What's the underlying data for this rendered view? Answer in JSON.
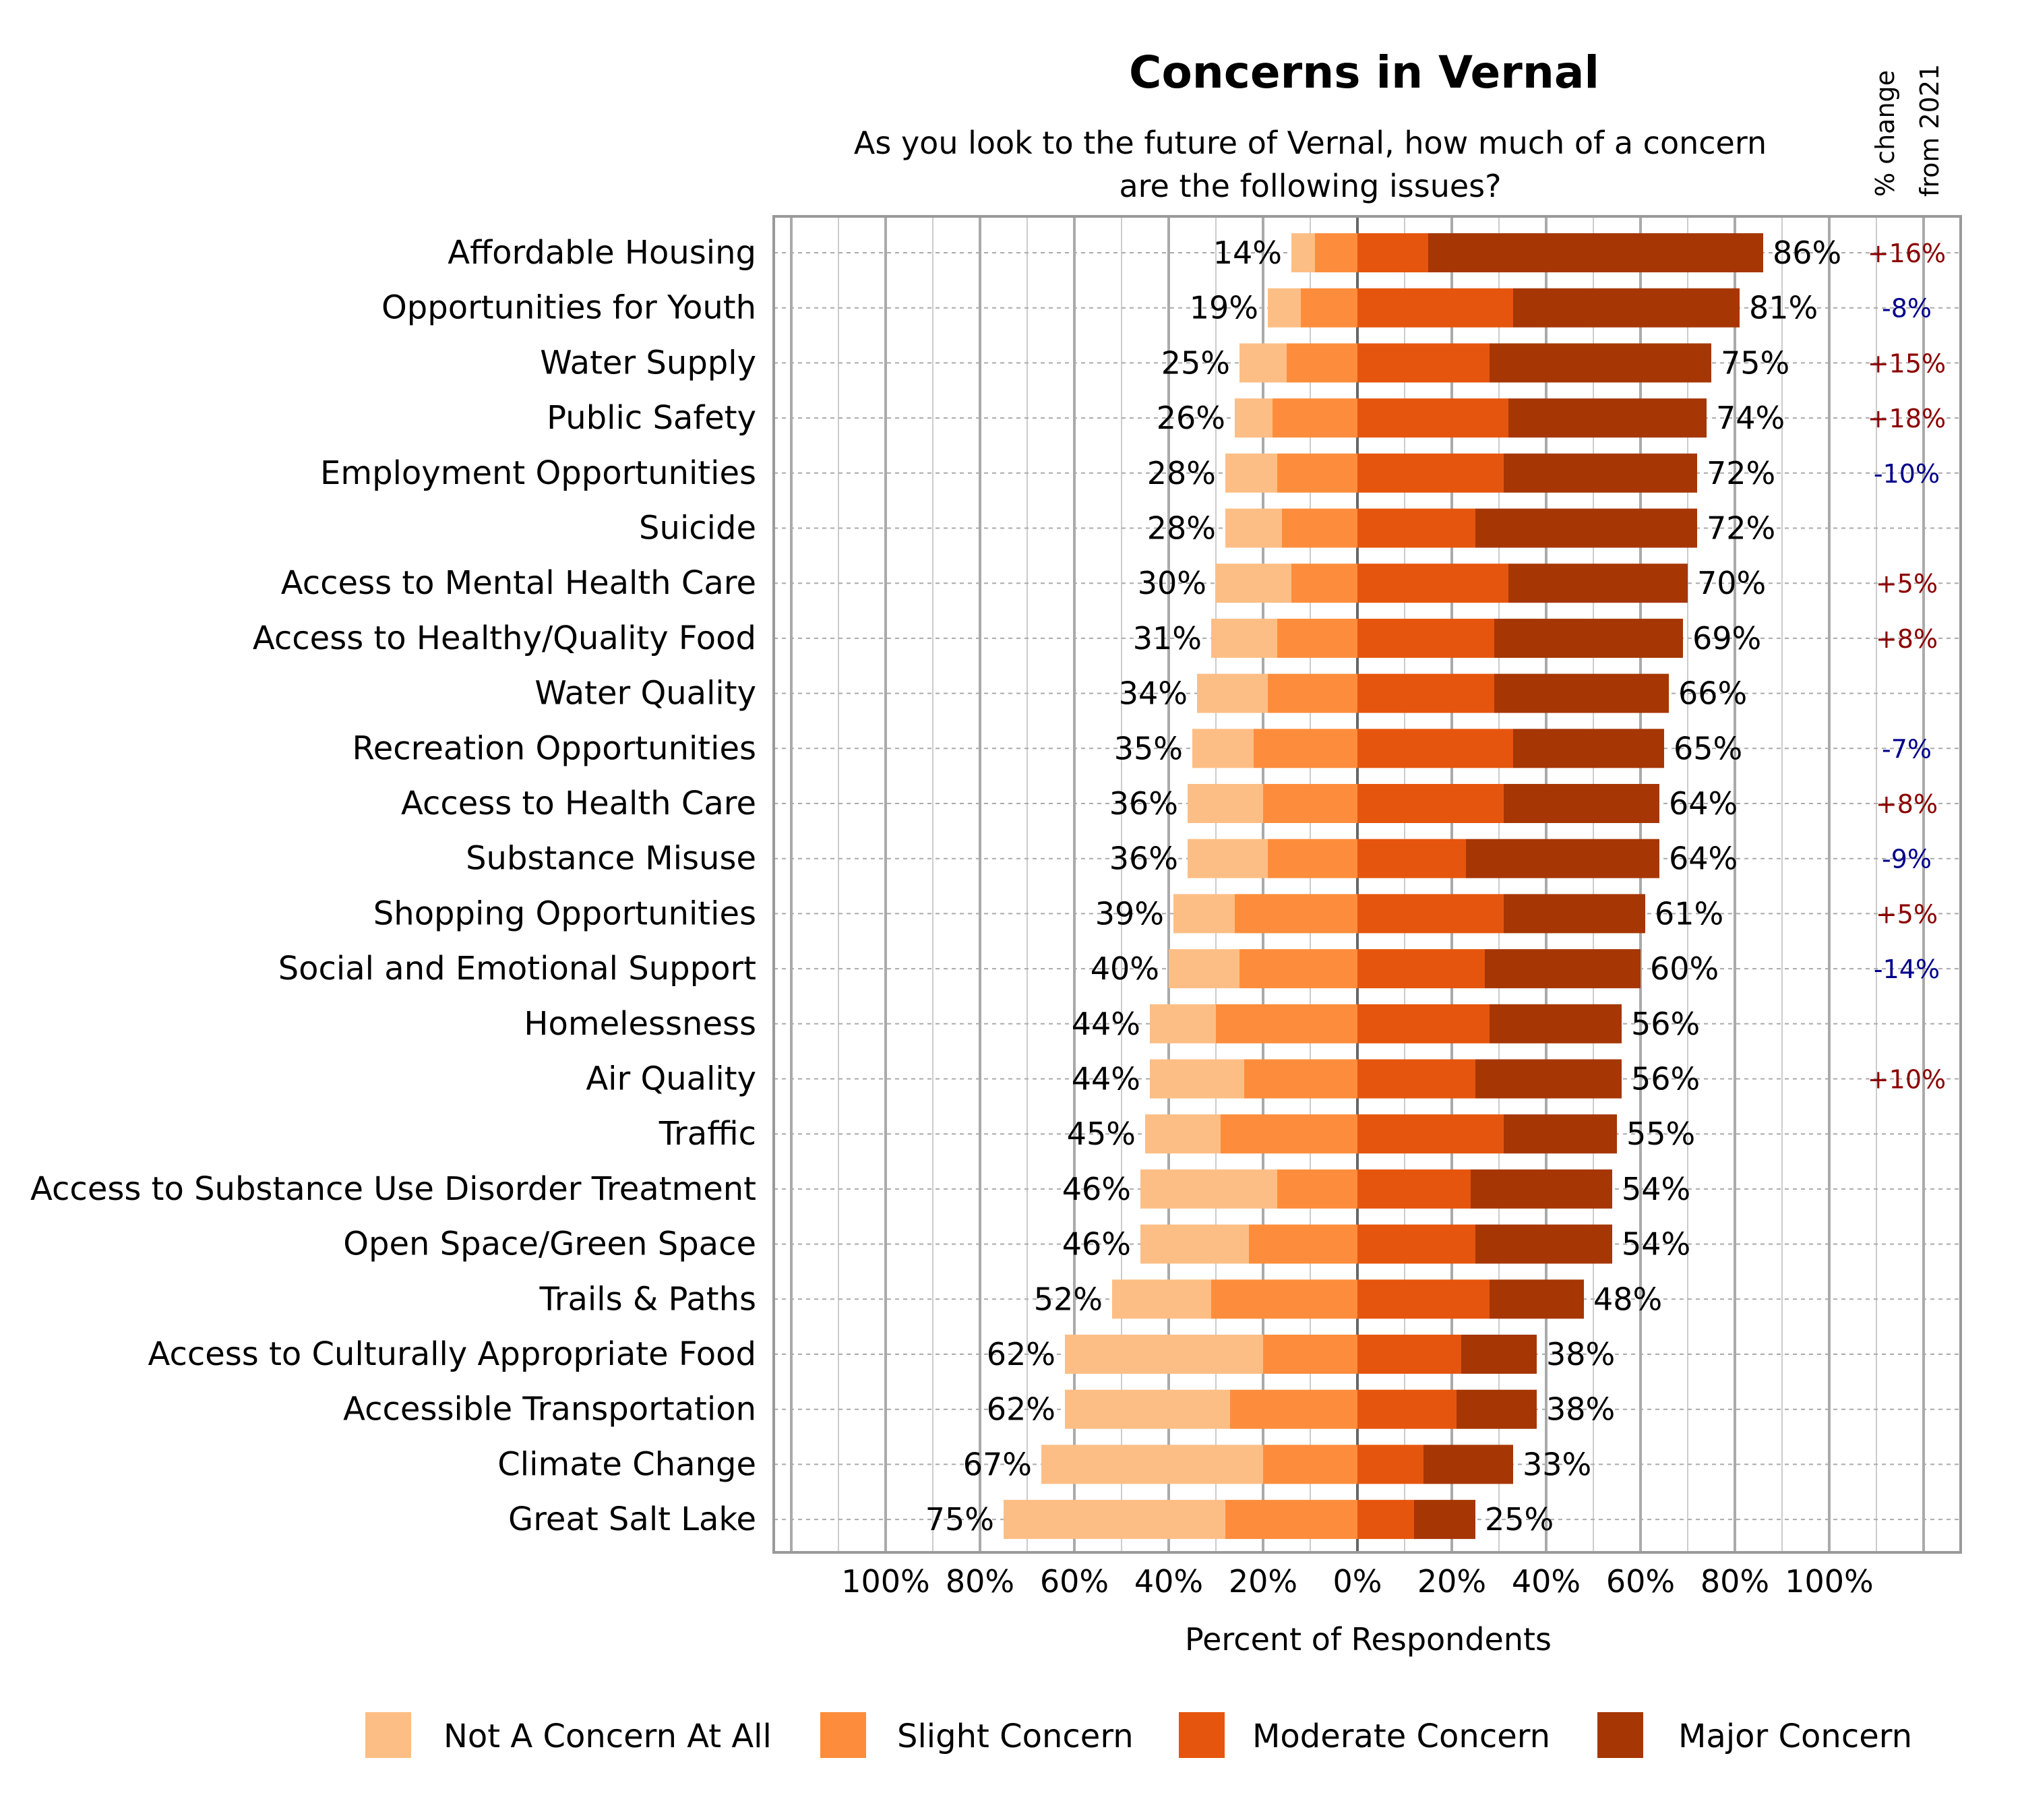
{
  "chart_data": {
    "type": "bar",
    "orientation": "horizontal-diverging",
    "title": "Concerns in Vernal",
    "subtitle": [
      "As you look to the future of Vernal, how much of a concern",
      "are the following issues?"
    ],
    "change_header": [
      "% change",
      "from 2021"
    ],
    "xlabel": "Percent of Respondents",
    "xlim": [
      -100,
      100
    ],
    "x_ticks": [
      "100%",
      "80%",
      "60%",
      "40%",
      "20%",
      "0%",
      "20%",
      "40%",
      "60%",
      "80%",
      "100%"
    ],
    "grid": true,
    "legend_position": "bottom",
    "colors": {
      "Not A Concern At All": "#FDBE85",
      "Slight Concern": "#FD8D3C",
      "Moderate Concern": "#E6550D",
      "Major Concern": "#A63603",
      "positive_change": "#8B0000",
      "negative_change": "#00008B"
    },
    "series_names": [
      "Not A Concern At All",
      "Slight Concern",
      "Moderate Concern",
      "Major Concern"
    ],
    "categories": [
      "Affordable Housing",
      "Opportunities for Youth",
      "Water Supply",
      "Public Safety",
      "Employment Opportunities",
      "Suicide",
      "Access to Mental Health Care",
      "Access to Healthy/Quality Food",
      "Water Quality",
      "Recreation Opportunities",
      "Access to Health Care",
      "Substance Misuse",
      "Shopping Opportunities",
      "Social and Emotional Support",
      "Homelessness",
      "Air Quality",
      "Traffic",
      "Access to Substance Use Disorder Treatment",
      "Open Space/Green Space",
      "Trails & Paths",
      "Access to Culturally Appropriate Food",
      "Accessible Transportation",
      "Climate Change",
      "Great Salt Lake"
    ],
    "series": [
      {
        "name": "Not A Concern At All",
        "values": [
          5,
          7,
          10,
          8,
          11,
          12,
          16,
          14,
          15,
          13,
          16,
          17,
          13,
          15,
          14,
          20,
          16,
          29,
          23,
          21,
          42,
          35,
          47,
          47
        ]
      },
      {
        "name": "Slight Concern",
        "values": [
          9,
          12,
          15,
          18,
          17,
          16,
          14,
          17,
          19,
          22,
          20,
          19,
          26,
          25,
          30,
          24,
          29,
          17,
          23,
          31,
          20,
          27,
          20,
          28
        ]
      },
      {
        "name": "Moderate Concern",
        "values": [
          15,
          33,
          28,
          32,
          31,
          25,
          32,
          29,
          29,
          33,
          31,
          23,
          31,
          27,
          28,
          25,
          31,
          24,
          25,
          28,
          22,
          21,
          14,
          12
        ]
      },
      {
        "name": "Major Concern",
        "values": [
          71,
          48,
          47,
          42,
          41,
          47,
          38,
          40,
          37,
          32,
          33,
          41,
          30,
          33,
          28,
          31,
          24,
          30,
          29,
          20,
          16,
          17,
          19,
          13
        ]
      }
    ],
    "left_totals": [
      "14%",
      "19%",
      "25%",
      "26%",
      "28%",
      "28%",
      "30%",
      "31%",
      "34%",
      "35%",
      "36%",
      "36%",
      "39%",
      "40%",
      "44%",
      "44%",
      "45%",
      "46%",
      "46%",
      "52%",
      "62%",
      "62%",
      "67%",
      "75%"
    ],
    "right_totals": [
      "86%",
      "81%",
      "75%",
      "74%",
      "72%",
      "72%",
      "70%",
      "69%",
      "66%",
      "65%",
      "64%",
      "64%",
      "61%",
      "60%",
      "56%",
      "56%",
      "55%",
      "54%",
      "54%",
      "48%",
      "38%",
      "38%",
      "33%",
      "25%"
    ],
    "change_from_2021": [
      "+16%",
      "-8%",
      "+15%",
      "+18%",
      "-10%",
      "",
      "+5%",
      "+8%",
      "",
      "-7%",
      "+8%",
      "-9%",
      "+5%",
      "-14%",
      "",
      "+10%",
      "",
      "",
      "",
      "",
      "",
      "",
      "",
      ""
    ]
  }
}
